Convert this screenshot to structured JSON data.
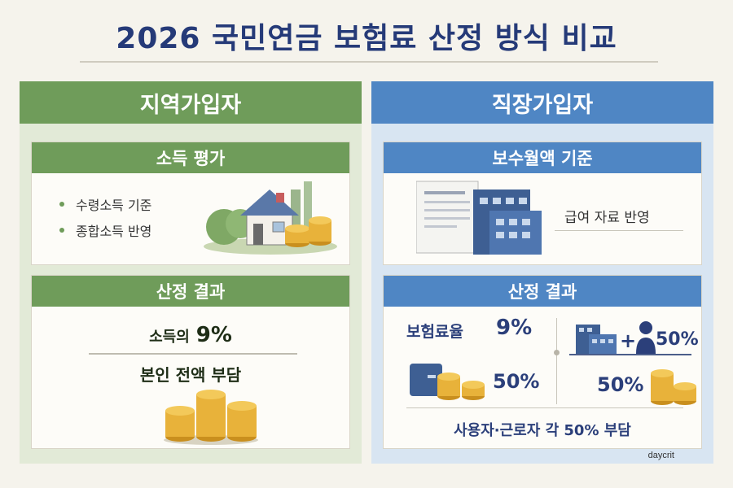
{
  "title": "2026 국민연금 보험료 산정 방식 비교",
  "left": {
    "header": "지역가입자",
    "income_card": {
      "title": "소득 평가",
      "bullets": [
        "수령소득 기준",
        "종합소득 반영"
      ]
    },
    "result_card": {
      "title": "산정 결과",
      "rate_label": "소득의",
      "rate_value": "9%",
      "burden": "본인 전액 부담"
    }
  },
  "right": {
    "header": "직장가입자",
    "salary_card": {
      "title": "보수월액 기준",
      "label": "급여 자료 반영"
    },
    "result_card": {
      "title": "산정 결과",
      "premium_label": "보험료율",
      "premium_value": "9%",
      "worker_share": "50%",
      "employer_share_top": "50%",
      "employer_share": "50%",
      "plus": "+",
      "share_text": "사용자·근로자 각 50% 부담"
    }
  },
  "watermark": "daycrit",
  "colors": {
    "title": "#253a78",
    "green": "#6f9c5a",
    "blue": "#4f86c4",
    "coin": "#e8b23a"
  }
}
